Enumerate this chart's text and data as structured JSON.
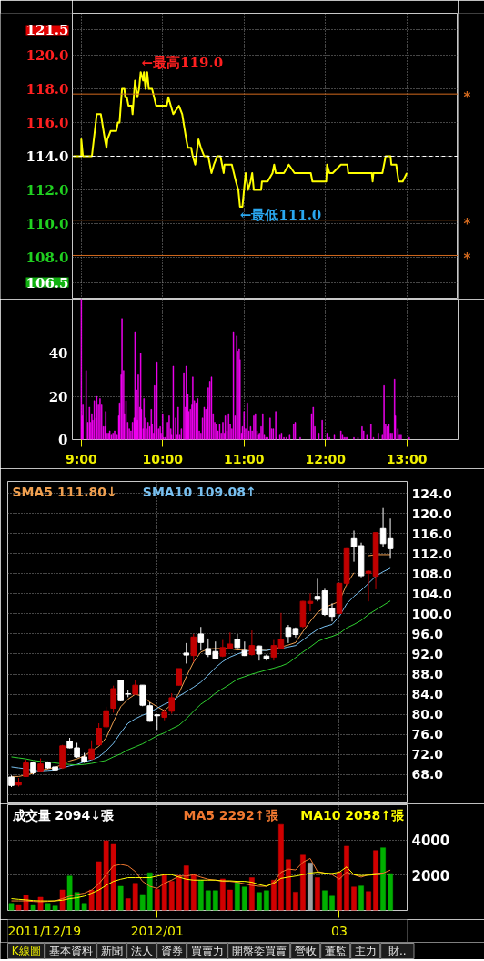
{
  "chart_data": [
    {
      "type": "line",
      "color": "#ffff00",
      "x": [
        8.9,
        9.0,
        9.0,
        9.02,
        9.13,
        9.19,
        9.24,
        9.29,
        9.31,
        9.32,
        9.36,
        9.43,
        9.45,
        9.47,
        9.5,
        9.53,
        9.54,
        9.56,
        9.58,
        9.62,
        9.63,
        9.66,
        9.69,
        9.71,
        9.73,
        9.76,
        9.77,
        9.79,
        9.81,
        9.83,
        9.87,
        9.92,
        10.05,
        10.07,
        10.1,
        10.13,
        10.2,
        10.24,
        10.29,
        10.31,
        10.35,
        10.37,
        10.4,
        10.44,
        10.47,
        10.51,
        10.56,
        10.6,
        10.63,
        10.67,
        10.71,
        10.75,
        10.76,
        10.85,
        10.9,
        10.93,
        10.95,
        10.98,
        11.02,
        11.05,
        11.08,
        11.1,
        11.12,
        11.21,
        11.22,
        11.29,
        11.35,
        11.37,
        11.39,
        11.49,
        11.55,
        11.62,
        11.82,
        11.84,
        12.01,
        12.02,
        12.05,
        12.09,
        12.19,
        12.27,
        12.28,
        12.57,
        12.58,
        12.59,
        12.7,
        12.74,
        12.8,
        12.81,
        12.87,
        12.9,
        12.95,
        13.0
      ],
      "values": [
        114.0,
        114.0,
        115.0,
        114.0,
        114.0,
        116.5,
        116.5,
        115.0,
        114.5,
        115.0,
        115.5,
        115.5,
        116.0,
        116.0,
        118.0,
        118.0,
        117.5,
        117.5,
        117.0,
        117.0,
        116.5,
        118.5,
        117.5,
        118.0,
        119.0,
        118.5,
        119.0,
        118.0,
        119.0,
        118.0,
        118.0,
        117.0,
        117.0,
        117.5,
        117.0,
        116.5,
        117.0,
        116.5,
        115.0,
        114.5,
        114.5,
        114.0,
        113.5,
        115.0,
        114.5,
        114.0,
        114.0,
        113.0,
        113.5,
        114.0,
        114.0,
        113.0,
        113.5,
        113.5,
        112.5,
        112.0,
        111.0,
        111.0,
        113.0,
        112.0,
        112.5,
        113.0,
        112.0,
        112.0,
        112.5,
        112.5,
        113.0,
        113.5,
        113.0,
        113.0,
        113.5,
        113.0,
        113.0,
        112.5,
        112.5,
        113.5,
        113.0,
        113.0,
        113.5,
        113.5,
        113.0,
        113.0,
        112.5,
        113.0,
        113.0,
        114.0,
        114.0,
        113.5,
        113.5,
        112.5,
        112.5,
        113.0
      ],
      "xlim": [
        8.89,
        13.63
      ],
      "ylim": [
        105.5,
        122.5
      ],
      "xticks": [
        {
          "value": 9,
          "label": null
        },
        {
          "value": 10,
          "label": null
        },
        {
          "value": 11,
          "label": null
        },
        {
          "value": 12,
          "label": null
        },
        {
          "value": 13,
          "label": null
        }
      ],
      "yticks": [
        121.5,
        {
          "value": 120,
          "label": "120.0"
        },
        {
          "value": 118,
          "label": "118.0"
        },
        {
          "value": 116,
          "label": "116.0"
        },
        {
          "value": 114,
          "label": "114.0"
        },
        {
          "value": 112,
          "label": "112.0"
        },
        {
          "value": 110,
          "label": "110.0"
        },
        {
          "value": 108,
          "label": "108.0"
        },
        106.5
      ],
      "tick_labels": "y",
      "grid": true,
      "ref_lines": [
        {
          "axis": "y",
          "value": 117.7,
          "label": "*",
          "color": "#d2691e"
        },
        {
          "axis": "y",
          "value": 110.2,
          "label": "*",
          "color": "#d2691e"
        },
        {
          "axis": "y",
          "value": 108.1,
          "label": "*",
          "color": "#d2691e"
        },
        {
          "axis": "y",
          "value": 114,
          "color": "#ffffff",
          "line_style": "dashed"
        }
      ],
      "annotations": [
        {
          "text": "←最高119.0",
          "x": 9.74,
          "y": 119.0
        },
        {
          "text": "←最低111.0",
          "x": 10.95,
          "y": 111.0
        }
      ]
    },
    {
      "type": "bar",
      "color": "#ff00ff",
      "x": [
        9.0,
        9.01,
        9.02,
        9.06,
        9.08,
        9.1,
        9.11,
        9.13,
        9.14,
        9.16,
        9.18,
        9.19,
        9.21,
        9.23,
        9.25,
        9.27,
        9.29,
        9.3,
        9.32,
        9.34,
        9.35,
        9.37,
        9.39,
        9.41,
        9.44,
        9.46,
        9.47,
        9.49,
        9.5,
        9.52,
        9.53,
        9.55,
        9.57,
        9.59,
        9.61,
        9.63,
        9.65,
        9.66,
        9.68,
        9.69,
        9.7,
        9.72,
        9.73,
        9.74,
        9.76,
        9.77,
        9.79,
        9.8,
        9.82,
        9.84,
        9.86,
        9.87,
        9.89,
        9.9,
        9.93,
        9.95,
        9.97,
        9.98,
        10.0,
        10.01,
        10.03,
        10.06,
        10.08,
        10.1,
        10.11,
        10.13,
        10.16,
        10.18,
        10.19,
        10.21,
        10.23,
        10.26,
        10.28,
        10.29,
        10.31,
        10.32,
        10.34,
        10.36,
        10.37,
        10.39,
        10.41,
        10.43,
        10.45,
        10.47,
        10.49,
        10.51,
        10.53,
        10.55,
        10.56,
        10.58,
        10.6,
        10.62,
        10.64,
        10.66,
        10.68,
        10.7,
        10.72,
        10.74,
        10.76,
        10.77,
        10.79,
        10.81,
        10.83,
        10.85,
        10.87,
        10.89,
        10.91,
        10.92,
        10.94,
        10.95,
        10.97,
        10.98,
        11.0,
        11.02,
        11.04,
        11.06,
        11.08,
        11.1,
        11.12,
        11.14,
        11.16,
        11.18,
        11.19,
        11.21,
        11.23,
        11.25,
        11.27,
        11.29,
        11.32,
        11.34,
        11.36,
        11.39,
        11.4,
        11.44,
        11.46,
        11.49,
        11.52,
        11.56,
        11.61,
        11.63,
        11.69,
        11.83,
        11.85,
        11.87,
        11.92,
        11.96,
        12.02,
        12.05,
        12.11,
        12.19,
        12.21,
        12.23,
        12.25,
        12.27,
        12.35,
        12.4,
        12.45,
        12.47,
        12.51,
        12.56,
        12.59,
        12.65,
        12.7,
        12.72,
        12.74,
        12.76,
        12.78,
        12.8,
        12.82,
        12.85,
        12.86,
        12.89,
        12.91,
        12.93,
        13.03
      ],
      "values": [
        65,
        11,
        16,
        32,
        8,
        15,
        8,
        12,
        9,
        18,
        10,
        20,
        16,
        19,
        16,
        6,
        6,
        13,
        3,
        3,
        4,
        2,
        3,
        4,
        2,
        11,
        17,
        30,
        56,
        32,
        12,
        18,
        8,
        5,
        4,
        8,
        10,
        50,
        23,
        9,
        30,
        15,
        40,
        14,
        5,
        19,
        10,
        5,
        8,
        6,
        14,
        7,
        3,
        25,
        36,
        5,
        6,
        3,
        12,
        1,
        1,
        8,
        11,
        5,
        2,
        34,
        10,
        2,
        15,
        2,
        5,
        31,
        15,
        34,
        21,
        13,
        14,
        16,
        29,
        18,
        17,
        19,
        4,
        3,
        10,
        15,
        14,
        15,
        24,
        27,
        29,
        12,
        8,
        7,
        4,
        7,
        3,
        8,
        3,
        11,
        4,
        12,
        7,
        5,
        50,
        11,
        48,
        41,
        42,
        37,
        3,
        6,
        13,
        5,
        17,
        4,
        6,
        4,
        11,
        12,
        4,
        2,
        3,
        6,
        12,
        2,
        1,
        1,
        10,
        5,
        5,
        13,
        1,
        2,
        3,
        1,
        1,
        2,
        7,
        8,
        1,
        12,
        15,
        6,
        3,
        9,
        3,
        1,
        2,
        4,
        2,
        1,
        1,
        1,
        1,
        1,
        6,
        4,
        2,
        7,
        1,
        3,
        2,
        25,
        7,
        6,
        7,
        3,
        3,
        28,
        11,
        5,
        2,
        2,
        1
      ],
      "xlim": [
        8.89,
        13.63
      ],
      "ylim": [
        0,
        65
      ],
      "xticks": [
        {
          "value": 9,
          "label": "9:00"
        },
        {
          "value": 10,
          "label": "10:00"
        },
        {
          "value": 11,
          "label": "11:00"
        },
        {
          "value": 12,
          "label": "12:00"
        },
        {
          "value": 13,
          "label": "13:00"
        }
      ],
      "yticks": [
        0,
        20,
        40
      ],
      "grid": true
    },
    {
      "type": "candlestick",
      "categories": [
        null,
        null,
        null,
        null,
        null,
        null,
        null,
        null,
        null,
        null,
        null,
        null,
        null,
        null,
        null,
        null,
        null,
        null,
        null,
        null,
        "2012/01",
        null,
        null,
        null,
        null,
        null,
        null,
        null,
        null,
        null,
        null,
        null,
        null,
        null,
        null,
        null,
        null,
        null,
        null,
        null,
        null,
        null,
        null,
        null,
        null,
        "03",
        null,
        null,
        null,
        null,
        null,
        null,
        null
      ],
      "ohlc": [
        [
          67.5,
          67.8,
          65.5,
          65.8
        ],
        [
          65.9,
          67.3,
          65.6,
          66.4
        ],
        [
          67.6,
          70.9,
          67.5,
          70.3
        ],
        [
          70.3,
          70.6,
          68.0,
          68.3
        ],
        [
          68.7,
          71.2,
          68.5,
          70.1
        ],
        [
          70.3,
          70.6,
          69.1,
          69.3
        ],
        [
          69.5,
          69.7,
          68.7,
          68.9
        ],
        [
          69.3,
          73.9,
          69.1,
          73.7
        ],
        [
          74.6,
          75.3,
          73.2,
          73.3
        ],
        [
          73.3,
          74.3,
          71.3,
          71.5
        ],
        [
          71.5,
          72.3,
          70.3,
          70.6
        ],
        [
          71.1,
          74.8,
          70.9,
          73.1
        ],
        [
          73.9,
          78.2,
          73.7,
          77.2
        ],
        [
          77.5,
          81.5,
          77.2,
          80.7
        ],
        [
          81.2,
          85.7,
          80.3,
          85.1
        ],
        [
          86.8,
          86.8,
          82.6,
          82.7
        ],
        [
          84.1,
          84.8,
          83.4,
          84.0
        ],
        [
          84.0,
          86.8,
          83.9,
          85.8
        ],
        [
          85.8,
          85.8,
          81.6,
          81.8
        ],
        [
          81.7,
          82.4,
          78.5,
          78.6
        ],
        [
          79.9,
          80.0,
          76.9,
          79.7
        ],
        [
          79.4,
          81.0,
          78.8,
          80.4
        ],
        [
          80.6,
          84.2,
          80.1,
          83.3
        ],
        [
          85.8,
          89.1,
          85.7,
          89.1
        ],
        [
          92.2,
          94.2,
          90.1,
          91.8
        ],
        [
          91.7,
          96.0,
          90.4,
          95.4
        ],
        [
          96.0,
          97.4,
          92.7,
          94.3
        ],
        [
          93.1,
          95.1,
          91.4,
          91.9
        ],
        [
          92.5,
          94.5,
          91.0,
          91.1
        ],
        [
          91.6,
          94.8,
          91.4,
          93.3
        ],
        [
          93.1,
          96.3,
          93.0,
          94.0
        ],
        [
          94.9,
          96.0,
          93.1,
          93.3
        ],
        [
          92.7,
          94.5,
          91.6,
          91.7
        ],
        [
          91.9,
          96.7,
          91.7,
          93.7
        ],
        [
          93.6,
          93.7,
          90.7,
          92.0
        ],
        [
          91.6,
          91.9,
          90.7,
          91.0
        ],
        [
          91.4,
          94.8,
          90.7,
          93.7
        ],
        [
          93.1,
          100.2,
          93.0,
          94.9
        ],
        [
          97.3,
          97.8,
          94.2,
          95.5
        ],
        [
          97.1,
          97.3,
          95.3,
          95.9
        ],
        [
          97.5,
          102.6,
          97.2,
          102.5
        ],
        [
          102.1,
          104.1,
          100.5,
          102.5
        ],
        [
          103.5,
          107.0,
          102.5,
          102.9
        ],
        [
          104.6,
          105.0,
          99.6,
          99.9
        ],
        [
          101.1,
          102.1,
          98.5,
          99.5
        ],
        [
          100.1,
          106.2,
          99.9,
          106.1
        ],
        [
          106.1,
          113.1,
          105.6,
          113.0
        ],
        [
          115.0,
          116.6,
          110.4,
          113.4
        ],
        [
          113.6,
          114.2,
          107.3,
          107.6
        ],
        [
          108.1,
          108.7,
          102.5,
          108.5
        ],
        [
          107.5,
          116.2,
          104.9,
          116.2
        ],
        [
          117.0,
          121.1,
          113.4,
          114.0
        ],
        [
          115.0,
          119.0,
          111.0,
          113.0
        ]
      ],
      "colors": [
        "#ffffff",
        "#c00000",
        "#c00000",
        "#ffffff",
        "#c00000",
        "#ffffff",
        "#ffffff",
        "#c00000",
        "#ffffff",
        "#ffffff",
        "#ffffff",
        "#c00000",
        "#c00000",
        "#c00000",
        "#c00000",
        "#ffffff",
        "#ffffff",
        "#c00000",
        "#ffffff",
        "#ffffff",
        "#ffffff",
        "#c00000",
        "#c00000",
        "#c00000",
        "#ffffff",
        "#c00000",
        "#ffffff",
        "#ffffff",
        "#ffffff",
        "#c00000",
        "#c00000",
        "#ffffff",
        "#ffffff",
        "#c00000",
        "#ffffff",
        "#ffffff",
        "#c00000",
        "#c00000",
        "#ffffff",
        "#ffffff",
        "#c00000",
        "#c00000",
        "#ffffff",
        "#ffffff",
        "#ffffff",
        "#c00000",
        "#c00000",
        "#ffffff",
        "#ffffff",
        "#c00000",
        "#c00000",
        "#ffffff",
        "#ffffff"
      ],
      "series": [
        {
          "type": "line",
          "name": "SMA5 111.80↓",
          "color": "#f0a050",
          "values": [
            67.6,
            67.6,
            67.9,
            68.2,
            68.8,
            69.1,
            69.4,
            70.0,
            70.7,
            71.1,
            71.7,
            72.7,
            73.6,
            75.3,
            78.5,
            81.5,
            83.0,
            84.0,
            83.6,
            82.4,
            81.5,
            80.7,
            82.0,
            84.2,
            87.5,
            90.4,
            92.4,
            93.0,
            93.1,
            93.1,
            93.1,
            92.8,
            92.9,
            93.0,
            92.8,
            92.7,
            93.0,
            93.4,
            93.8,
            94.3,
            96.5,
            98.5,
            100.3,
            101.3,
            101.9,
            102.5,
            105.9,
            108.2,
            null,
            111.6,
            111.8,
            111.8,
            111.8
          ]
        },
        {
          "type": "line",
          "name": "SMA10 109.08↑",
          "color": "#78c0f0",
          "values": [
            69.5,
            69.3,
            69.1,
            68.8,
            68.7,
            68.8,
            68.9,
            69.3,
            69.7,
            70.0,
            70.5,
            70.9,
            71.5,
            72.7,
            74.2,
            76.3,
            78.2,
            79.1,
            79.8,
            80.4,
            81.2,
            82.0,
            82.6,
            83.6,
            84.5,
            85.4,
            86.4,
            87.8,
            89.3,
            90.5,
            91.4,
            92.0,
            92.5,
            92.7,
            92.7,
            92.7,
            93.0,
            93.1,
            93.4,
            93.7,
            94.8,
            95.9,
            96.9,
            97.5,
            97.9,
            99.5,
            102.0,
            103.5,
            104.7,
            106.1,
            107.5,
            108.4,
            109.1
          ]
        },
        {
          "type": "line",
          "color": "#30d030",
          "values": [
            71.5,
            71.3,
            71.1,
            70.8,
            70.6,
            70.5,
            70.3,
            70.1,
            70.0,
            69.9,
            70.0,
            70.2,
            70.5,
            70.8,
            71.5,
            72.1,
            72.9,
            73.5,
            74.1,
            74.9,
            75.7,
            76.3,
            77.1,
            77.8,
            79.1,
            80.6,
            82.0,
            83.0,
            84.2,
            85.1,
            86.0,
            87.0,
            87.5,
            88.0,
            88.4,
            88.8,
            89.2,
            89.6,
            90.2,
            91.3,
            92.4,
            93.4,
            94.5,
            95.1,
            95.5,
            96.1,
            97.2,
            97.9,
            98.7,
            99.9,
            100.8,
            101.7,
            102.6
          ]
        }
      ],
      "ylim": [
        62.5,
        126.4
      ],
      "yticks": [
        {
          "value": 124,
          "label": "124.0"
        },
        {
          "value": 120,
          "label": "120.0"
        },
        {
          "value": 116,
          "label": "116.0"
        },
        {
          "value": 112,
          "label": "112.0"
        },
        {
          "value": 108,
          "label": "108.0"
        },
        {
          "value": 104,
          "label": "104.0"
        },
        {
          "value": 100,
          "label": "100.0"
        },
        {
          "value": 96,
          "label": "96.0"
        },
        {
          "value": 92,
          "label": "92.0"
        },
        {
          "value": 88,
          "label": "88.0"
        },
        {
          "value": 84,
          "label": "84.0"
        },
        {
          "value": 80,
          "label": "80.0"
        },
        {
          "value": 76,
          "label": "76.0"
        },
        {
          "value": 72,
          "label": "72.0"
        },
        {
          "value": 68,
          "label": "68.0"
        },
        {
          "value": 64,
          "label": null
        }
      ],
      "tick_labels": "y",
      "grid": true,
      "legend": "top left"
    },
    {
      "type": "bar",
      "title": "成交量 2094↓張",
      "categories": [
        null,
        null,
        null,
        null,
        null,
        null,
        null,
        null,
        null,
        null,
        null,
        null,
        null,
        null,
        null,
        null,
        null,
        null,
        null,
        null,
        "2012/01",
        null,
        null,
        null,
        null,
        null,
        null,
        null,
        null,
        null,
        null,
        null,
        null,
        null,
        null,
        null,
        null,
        null,
        null,
        null,
        null,
        null,
        null,
        null,
        null,
        "03",
        null,
        null,
        null,
        null,
        null,
        null,
        null
      ],
      "series": [
        {
          "type": "bar",
          "colors": [
            "#00b000",
            "#d00000",
            "#d00000",
            "#00b000",
            "#d00000",
            "#00b000",
            "#00b000",
            "#d00000",
            "#00b000",
            "#00b000",
            "#00b000",
            "#d00000",
            "#d00000",
            "#d00000",
            "#d00000",
            "#00b000",
            "#d00000",
            "#d00000",
            "#00b000",
            "#00b000",
            "#d00000",
            "#d00000",
            "#d00000",
            "#d00000",
            "#d00000",
            "#d00000",
            "#00b000",
            "#00b000",
            "#00b000",
            "#d00000",
            "#d00000",
            "#00b000",
            "#00b000",
            "#d00000",
            "#00b000",
            "#00b000",
            "#d00000",
            "#d00000",
            "#d00000",
            "#d00000",
            "#d00000",
            "#a0a0a0",
            "#d00000",
            "#00b000",
            "#00b000",
            "#d00000",
            "#d00000",
            "#d00000",
            "#00b000",
            "#d00000",
            "#d00000",
            "#00b000",
            "#00b000"
          ],
          "values": [
            400,
            330,
            860,
            330,
            750,
            400,
            250,
            1160,
            1950,
            1020,
            400,
            1160,
            2770,
            3960,
            3750,
            1370,
            670,
            1540,
            910,
            2140,
            1190,
            2030,
            1650,
            1980,
            2530,
            2030,
            1720,
            1120,
            1120,
            1790,
            1160,
            1610,
            1330,
            1860,
            1020,
            1120,
            1720,
            4880,
            2880,
            1040,
            3140,
            2700,
            1860,
            1120,
            810,
            2180,
            3650,
            1330,
            1390,
            1070,
            3400,
            3560,
            2094
          ]
        },
        {
          "type": "line",
          "name": "MA5 2292↑張",
          "color": "#f07830",
          "values": [
            540,
            540,
            540,
            510,
            490,
            510,
            540,
            670,
            810,
            910,
            980,
            1160,
            1510,
            2030,
            2530,
            2610,
            2530,
            2210,
            1650,
            1370,
            1250,
            1540,
            1720,
            1950,
            1950,
            2030,
            1890,
            1770,
            1720,
            1650,
            1650,
            1600,
            1510,
            1420,
            1370,
            1370,
            1600,
            2170,
            2350,
            2300,
            2740,
            2950,
            2210,
            2120,
            2030,
            1770,
            2170,
            2030,
            1890,
            2030,
            2120,
            2120,
            2292
          ]
        },
        {
          "type": "line",
          "name": "MA10 2058↑張",
          "color": "#ffff00",
          "values": [
            670,
            630,
            600,
            560,
            540,
            540,
            540,
            580,
            670,
            720,
            810,
            980,
            1160,
            1420,
            1650,
            1770,
            1860,
            1860,
            1860,
            1860,
            1950,
            2030,
            2030,
            1890,
            1770,
            1720,
            1720,
            1720,
            1720,
            1680,
            1680,
            1650,
            1650,
            1600,
            1470,
            1370,
            1540,
            1820,
            1890,
            1950,
            2030,
            2120,
            2170,
            2120,
            2100,
            2170,
            2470,
            2030,
            1980,
            2000,
            2030,
            2070,
            2058
          ]
        }
      ],
      "ylim": [
        0,
        6000
      ],
      "yticks": [
        2000,
        4000
      ],
      "grid": true,
      "legend": "top right",
      "annotations": [
        "2011/12/19"
      ]
    },
    {
      "type": "other",
      "annotations": [
        "K線圖",
        "基本資料",
        "新聞",
        "法人",
        "資券",
        "買賣力",
        "開盤委買賣",
        "營收",
        "董監",
        "主力",
        "財.."
      ]
    }
  ]
}
